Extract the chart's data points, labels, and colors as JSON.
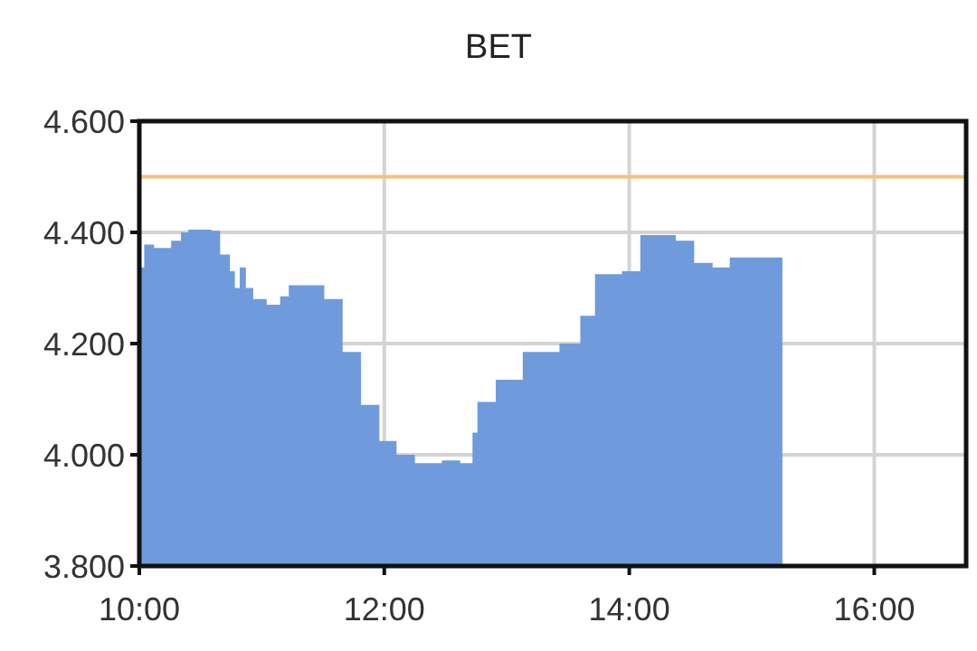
{
  "chart_data": {
    "type": "area",
    "title": "BET",
    "x": [
      10.0,
      10.04,
      10.12,
      10.26,
      10.34,
      10.4,
      10.59,
      10.66,
      10.74,
      10.78,
      10.82,
      10.87,
      10.93,
      11.04,
      11.15,
      11.22,
      11.37,
      11.51,
      11.66,
      11.81,
      11.96,
      12.1,
      12.25,
      12.47,
      12.62,
      12.72,
      12.76,
      12.91,
      13.13,
      13.43,
      13.6,
      13.72,
      13.94,
      14.09,
      14.38,
      14.53,
      14.68,
      14.82,
      15.25
    ],
    "series": [
      {
        "color": "#6f9bdc",
        "values": [
          4337,
          4378,
          4372,
          4385,
          4400,
          4405,
          4403,
          4360,
          4330,
          4300,
          4337,
          4300,
          4280,
          4270,
          4285,
          4305,
          4305,
          4280,
          4185,
          4090,
          4025,
          4000,
          3985,
          3990,
          3985,
          4040,
          4095,
          4135,
          4185,
          4200,
          4250,
          4325,
          4330,
          4395,
          4385,
          4345,
          4337,
          4355,
          4355
        ]
      }
    ],
    "xlim": [
      10,
      16.75
    ],
    "xticks": [
      {
        "value": 10,
        "label": "10:00"
      },
      {
        "value": 12,
        "label": "12:00"
      },
      {
        "value": 14,
        "label": "14:00"
      },
      {
        "value": 16,
        "label": "16:00"
      }
    ],
    "ylim": [
      3800,
      4600
    ],
    "yticks": [
      {
        "value": 3800,
        "label": "3.800"
      },
      {
        "value": 4000,
        "label": "4.000"
      },
      {
        "value": 4200,
        "label": "4.200"
      },
      {
        "value": 4400,
        "label": "4.400"
      },
      {
        "value": 4600,
        "label": "4.600"
      }
    ],
    "grid": true,
    "ref_lines": [
      {
        "axis": "y",
        "value": 4500,
        "color": "#f5c27a"
      }
    ]
  }
}
